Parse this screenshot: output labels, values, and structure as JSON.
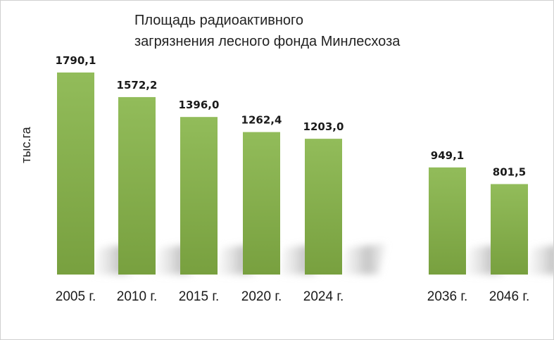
{
  "chart_data": {
    "type": "bar",
    "title_lines": [
      "Площадь радиоактивного",
      "загрязнения  лесного фонда Минлесхоза"
    ],
    "ylabel": "тыс.га",
    "xlabel": "",
    "categories": [
      "2005 г.",
      "2010 г.",
      "2015 г.",
      "2020 г.",
      "2024 г.",
      "2036 г.",
      "2046 г."
    ],
    "values": [
      1790.1,
      1572.2,
      1396.0,
      1262.4,
      1203.0,
      949.1,
      801.5
    ],
    "value_labels": [
      "1790,1",
      "1572,2",
      "1396,0",
      "1262,4",
      "1203,0",
      "949,1",
      "801,5"
    ],
    "ylim": [
      0,
      1790.1
    ],
    "grid": false,
    "legend": "none",
    "colors": {
      "bar_top": "#92bc5a",
      "bar_bottom": "#78a03f",
      "shadow": "#cfcfcf"
    }
  }
}
